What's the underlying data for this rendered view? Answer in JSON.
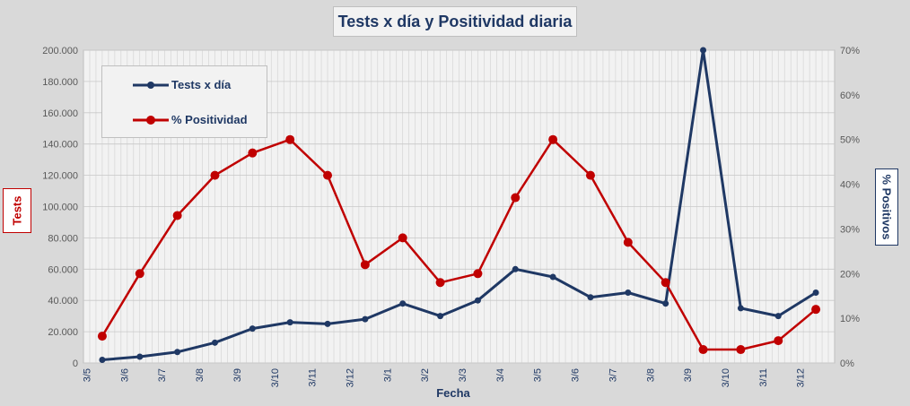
{
  "chart_data": {
    "type": "line",
    "title": "Tests x día y Positividad diaria",
    "xlabel": "Fecha",
    "ylabel_left": "Tests",
    "ylabel_right": "% Positivos",
    "y_left_lim": [
      0,
      200000
    ],
    "y_right_lim": [
      0,
      70
    ],
    "y_left_ticks": [
      "0",
      "20.000",
      "40.000",
      "60.000",
      "80.000",
      "100.000",
      "120.000",
      "140.000",
      "160.000",
      "180.000",
      "200.000"
    ],
    "y_right_ticks": [
      "0%",
      "10%",
      "20%",
      "30%",
      "40%",
      "50%",
      "60%",
      "70%"
    ],
    "x_tick_labels": [
      "3/5",
      "3/6",
      "3/7",
      "3/8",
      "3/9",
      "3/10",
      "3/11",
      "3/12",
      "3/1",
      "3/2",
      "3/3",
      "3/4",
      "3/5",
      "3/6",
      "3/7",
      "3/8",
      "3/9",
      "3/10",
      "3/11",
      "3/12"
    ],
    "grid": true,
    "legend_position": "top-left",
    "colors": {
      "tests": "#1f3864",
      "positividad": "#c00000"
    },
    "series": [
      {
        "name": "Tests x día",
        "axis": "left",
        "x": [
          0,
          1,
          2,
          3,
          4,
          5,
          6,
          7,
          8,
          9,
          10,
          11,
          12,
          13,
          14,
          15,
          16,
          17,
          18,
          19
        ],
        "values": [
          2000,
          4000,
          7000,
          13000,
          22000,
          26000,
          25000,
          28000,
          38000,
          30000,
          40000,
          60000,
          55000,
          42000,
          45000,
          38000,
          200000,
          35000,
          30000,
          45000
        ]
      },
      {
        "name": "% Positividad",
        "axis": "right",
        "x": [
          0,
          1,
          2,
          3,
          4,
          5,
          6,
          7,
          8,
          9,
          10,
          11,
          12,
          13,
          14,
          15,
          16,
          17,
          18,
          19
        ],
        "values": [
          6,
          20,
          33,
          42,
          47,
          50,
          42,
          22,
          28,
          18,
          20,
          37,
          50,
          42,
          27,
          18,
          3,
          3,
          5,
          12
        ]
      }
    ]
  }
}
